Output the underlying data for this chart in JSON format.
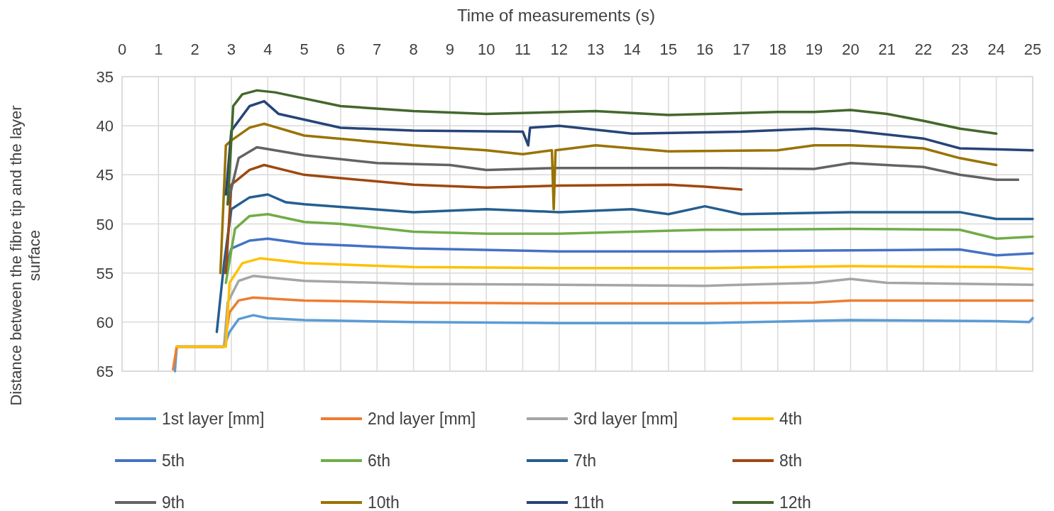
{
  "chart_data": {
    "type": "line",
    "xlabel": "Time of measurements (s)",
    "ylabel": "Distance between the fibre tip and the layer surface",
    "xlim": [
      0,
      25
    ],
    "xticks": [
      0,
      1,
      2,
      3,
      4,
      5,
      6,
      7,
      8,
      9,
      10,
      11,
      12,
      13,
      14,
      15,
      16,
      17,
      18,
      19,
      20,
      21,
      22,
      23,
      24,
      25
    ],
    "ylim": [
      65,
      35
    ],
    "yticks": [
      35,
      40,
      45,
      50,
      55,
      60,
      65
    ],
    "grid": true,
    "legend": "bottom",
    "marker": "none",
    "line_style": "solid",
    "series": [
      {
        "name": "1st layer [mm]",
        "color": "#5b9bd5",
        "x": [
          1.45,
          1.5,
          2.8,
          2.95,
          3.2,
          3.6,
          4,
          5,
          8,
          12,
          16,
          20,
          24,
          24.9,
          25
        ],
        "values": [
          65,
          62.5,
          62.5,
          61,
          59.7,
          59.3,
          59.6,
          59.8,
          60,
          60.1,
          60.1,
          59.8,
          59.9,
          60,
          59.6
        ]
      },
      {
        "name": "2nd layer [mm]",
        "color": "#ed7d31",
        "x": [
          1.4,
          1.5,
          2.8,
          2.95,
          3.2,
          3.6,
          5,
          8,
          12,
          16,
          19,
          20,
          22,
          25
        ],
        "values": [
          64.8,
          62.5,
          62.5,
          59,
          57.8,
          57.5,
          57.8,
          58,
          58.1,
          58.1,
          58,
          57.8,
          57.8,
          57.8
        ]
      },
      {
        "name": "3rd layer [mm]",
        "color": "#a5a5a5",
        "x": [
          1.5,
          2.8,
          2.9,
          3.2,
          3.6,
          5,
          8,
          12,
          16,
          19,
          20,
          21,
          25
        ],
        "values": [
          62.5,
          62.5,
          58,
          55.8,
          55.3,
          55.8,
          56.1,
          56.2,
          56.3,
          56,
          55.6,
          56,
          56.2
        ]
      },
      {
        "name": "4th",
        "color": "#ffc000",
        "x": [
          1.5,
          2.85,
          2.95,
          3.3,
          3.8,
          5,
          8,
          12,
          16,
          20,
          24,
          25
        ],
        "values": [
          62.5,
          62.5,
          56,
          54,
          53.5,
          54,
          54.4,
          54.5,
          54.5,
          54.3,
          54.4,
          54.6
        ]
      },
      {
        "name": "5th",
        "color": "#4472c4",
        "x": [
          2.8,
          3,
          3.5,
          4,
          5,
          8,
          12,
          16,
          20,
          23,
          24,
          25
        ],
        "values": [
          55,
          52.5,
          51.7,
          51.5,
          52,
          52.5,
          52.8,
          52.8,
          52.7,
          52.6,
          53.2,
          53
        ]
      },
      {
        "name": "6th",
        "color": "#70ad47",
        "x": [
          2.85,
          3.1,
          3.5,
          4,
          5,
          6,
          8,
          10,
          12,
          16,
          20,
          23,
          24,
          25
        ],
        "values": [
          56,
          50.5,
          49.2,
          49,
          49.8,
          50,
          50.8,
          51,
          51,
          50.6,
          50.5,
          50.6,
          51.5,
          51.3
        ]
      },
      {
        "name": "7th",
        "color": "#255e91",
        "x": [
          2.6,
          2.8,
          3,
          3.5,
          4,
          4.5,
          5,
          8,
          10,
          12,
          14,
          15,
          16,
          17,
          20,
          23,
          24,
          25
        ],
        "values": [
          61,
          54,
          48.5,
          47.3,
          47,
          47.8,
          48,
          48.8,
          48.5,
          48.8,
          48.5,
          49,
          48.2,
          49,
          48.8,
          48.8,
          49.5,
          49.5
        ]
      },
      {
        "name": "8th",
        "color": "#9e480e",
        "x": [
          2.85,
          3,
          3.5,
          3.9,
          5,
          8,
          10,
          12,
          15,
          16,
          17
        ],
        "values": [
          55,
          46,
          44.5,
          44,
          45,
          46,
          46.3,
          46.1,
          46,
          46.2,
          46.5
        ]
      },
      {
        "name": "9th",
        "color": "#636363",
        "x": [
          2.9,
          3.2,
          3.7,
          4.2,
          5,
          7,
          9,
          10,
          12,
          16,
          19,
          20,
          22,
          23,
          24,
          24.6
        ],
        "values": [
          48,
          43.3,
          42.2,
          42.5,
          43,
          43.8,
          44,
          44.5,
          44.3,
          44.3,
          44.4,
          43.8,
          44.2,
          45,
          45.5,
          45.5
        ]
      },
      {
        "name": "10th",
        "color": "#997300",
        "x": [
          2.7,
          2.85,
          3,
          3.5,
          3.9,
          5,
          8,
          10,
          11,
          11.8,
          11.85,
          11.9,
          13,
          15,
          18,
          19,
          20,
          22,
          23,
          24
        ],
        "values": [
          55,
          42,
          41.5,
          40.2,
          39.8,
          41,
          42,
          42.5,
          42.9,
          42.5,
          48.5,
          42.5,
          42,
          42.6,
          42.5,
          42,
          42,
          42.3,
          43.3,
          44
        ]
      },
      {
        "name": "11th",
        "color": "#264478",
        "x": [
          2.85,
          3,
          3.5,
          3.9,
          4.3,
          6,
          8,
          11,
          11.15,
          11.2,
          12,
          14,
          17,
          19,
          20,
          22,
          23,
          25
        ],
        "values": [
          47,
          40.5,
          38,
          37.5,
          38.8,
          40.2,
          40.5,
          40.6,
          42,
          40.2,
          40,
          40.8,
          40.6,
          40.3,
          40.5,
          41.3,
          42.3,
          42.5
        ]
      },
      {
        "name": "12th",
        "color": "#43682b",
        "x": [
          2.9,
          3.05,
          3.3,
          3.7,
          4.2,
          6,
          8,
          10,
          13,
          15,
          18,
          19,
          20,
          21,
          22,
          23,
          24
        ],
        "values": [
          48,
          38,
          36.8,
          36.4,
          36.6,
          38,
          38.5,
          38.8,
          38.5,
          38.9,
          38.6,
          38.6,
          38.4,
          38.8,
          39.5,
          40.3,
          40.8
        ]
      }
    ]
  }
}
